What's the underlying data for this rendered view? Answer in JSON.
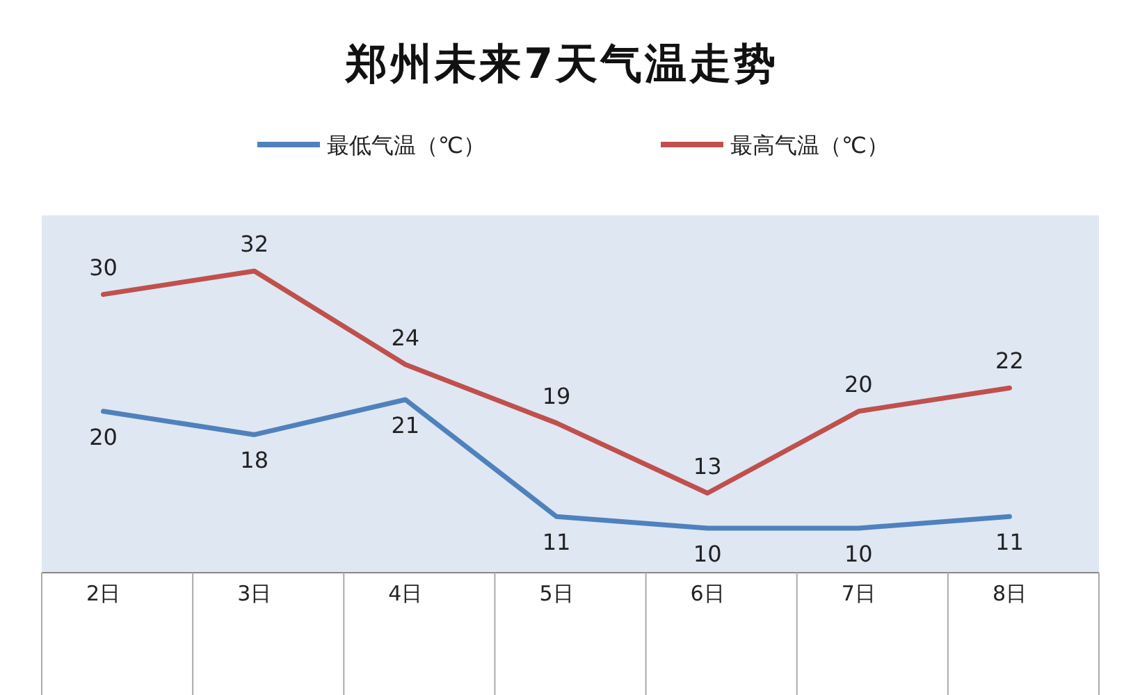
{
  "chart_data": {
    "type": "line",
    "title": "郑州未来7天气温走势",
    "categories": [
      "2日",
      "3日",
      "4日",
      "5日",
      "6日",
      "7日",
      "8日"
    ],
    "series": [
      {
        "name": "最低气温（℃）",
        "color": "#4f81bd",
        "values": [
          20,
          18,
          21,
          11,
          10,
          10,
          11
        ]
      },
      {
        "name": "最高气温（℃）",
        "color": "#c0504d",
        "values": [
          30,
          32,
          24,
          19,
          13,
          20,
          22
        ]
      }
    ],
    "data_labels": true,
    "legend": "top"
  }
}
